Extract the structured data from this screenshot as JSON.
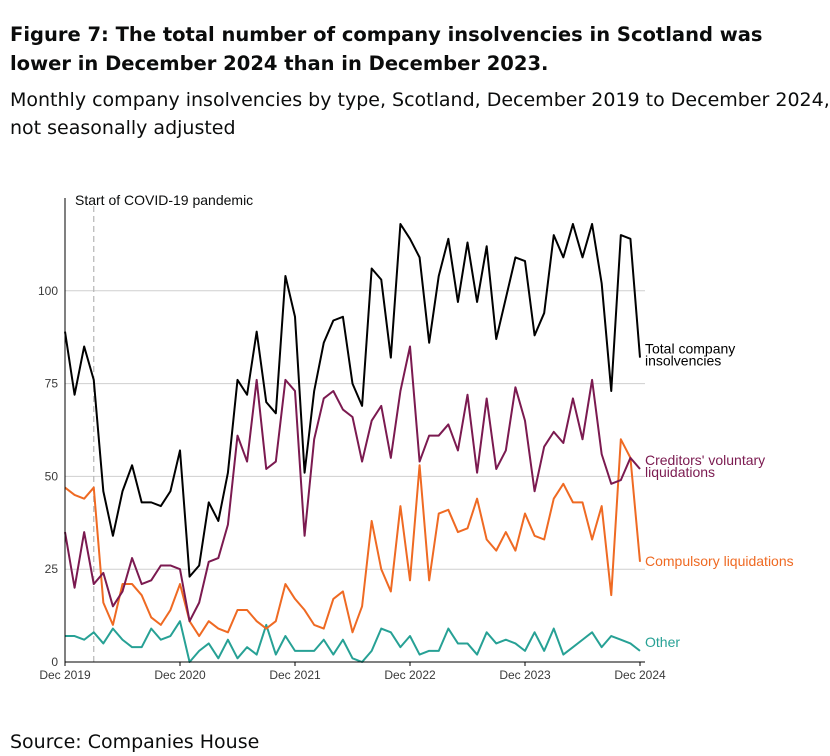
{
  "figure": {
    "title": "Figure 7: The total number of company insolvencies in Scotland was lower in December 2024 than in December 2023.",
    "subtitle_line1": "Monthly company insolvencies by type, Scotland, December 2019 to December 2024,",
    "subtitle_line2": "not seasonally adjusted",
    "source": "Source: Companies House"
  },
  "chart_data": {
    "type": "line",
    "title": "",
    "xlabel": "",
    "ylabel": "",
    "x_start": "2019-12",
    "x_end": "2024-12",
    "x_ticks": [
      "Dec 2019",
      "Dec 2020",
      "Dec 2021",
      "Dec 2022",
      "Dec 2023",
      "Dec 2024"
    ],
    "ylim": [
      0,
      125
    ],
    "y_ticks": [
      0,
      25,
      50,
      75,
      100
    ],
    "grid": "horizontal",
    "legend": "direct labels at right end of lines",
    "annotation": {
      "label": "Start of COVID-19 pandemic",
      "x": "2020-03"
    },
    "series": [
      {
        "name": "Total company insolvencies",
        "color": "#000000",
        "values": [
          89,
          72,
          85,
          76,
          46,
          34,
          46,
          53,
          43,
          43,
          42,
          46,
          57,
          23,
          26,
          43,
          38,
          51,
          76,
          72,
          89,
          70,
          67,
          104,
          93,
          51,
          73,
          86,
          92,
          93,
          75,
          69,
          106,
          103,
          82,
          118,
          114,
          109,
          86,
          104,
          114,
          97,
          113,
          97,
          112,
          87,
          98,
          109,
          108,
          88,
          94,
          115,
          109,
          118,
          109,
          118,
          102,
          73,
          115,
          114,
          82
        ]
      },
      {
        "name": "Creditors' voluntary liquidations",
        "color": "#7b1a50",
        "values": [
          35,
          20,
          35,
          21,
          24,
          15,
          19,
          28,
          21,
          22,
          26,
          26,
          25,
          11,
          16,
          27,
          28,
          37,
          61,
          54,
          76,
          52,
          54,
          76,
          73,
          34,
          60,
          71,
          73,
          68,
          66,
          54,
          65,
          69,
          55,
          73,
          85,
          54,
          61,
          61,
          64,
          57,
          72,
          51,
          71,
          52,
          57,
          74,
          65,
          46,
          58,
          62,
          59,
          71,
          60,
          76,
          56,
          48,
          49,
          55,
          52
        ]
      },
      {
        "name": "Compulsory liquidations",
        "color": "#ef6a23",
        "values": [
          47,
          45,
          44,
          47,
          16,
          10,
          21,
          21,
          18,
          12,
          10,
          14,
          21,
          11,
          7,
          11,
          9,
          8,
          14,
          14,
          11,
          9,
          11,
          21,
          17,
          14,
          10,
          9,
          17,
          19,
          8,
          15,
          38,
          25,
          19,
          42,
          22,
          53,
          22,
          40,
          41,
          35,
          36,
          44,
          33,
          30,
          35,
          30,
          40,
          34,
          33,
          44,
          48,
          43,
          43,
          33,
          42,
          18,
          60,
          55,
          27
        ]
      },
      {
        "name": "Other",
        "color": "#27a195",
        "values": [
          7,
          7,
          6,
          8,
          5,
          9,
          6,
          4,
          4,
          9,
          6,
          7,
          11,
          0,
          3,
          5,
          1,
          6,
          1,
          4,
          2,
          10,
          2,
          7,
          3,
          3,
          3,
          6,
          2,
          6,
          1,
          0,
          3,
          9,
          8,
          4,
          7,
          2,
          3,
          3,
          9,
          5,
          5,
          2,
          8,
          5,
          6,
          5,
          3,
          8,
          3,
          9,
          2,
          4,
          6,
          8,
          4,
          7,
          6,
          5,
          3
        ]
      }
    ]
  }
}
